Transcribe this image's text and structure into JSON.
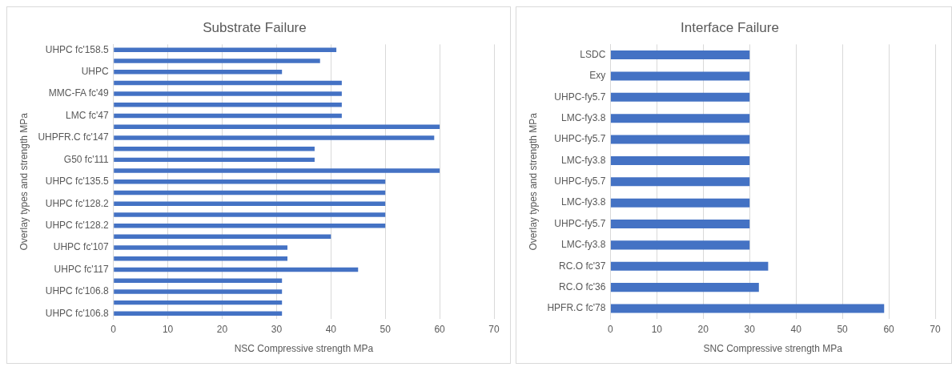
{
  "chart_data": [
    {
      "type": "bar",
      "orientation": "horizontal",
      "title": "Substrate Failure",
      "xlabel": "NSC Compressive strength MPa",
      "ylabel": "Overlay types and strength MPa",
      "categories": [
        "UHPC fc'158.5",
        null,
        "UHPC",
        null,
        "MMC-FA fc'49",
        null,
        "LMC fc'47",
        null,
        "UHPFR.C fc'147",
        null,
        "G50 fc'111",
        null,
        "UHPC fc'135.5",
        null,
        "UHPC fc'128.2",
        null,
        "UHPC fc'128.2",
        null,
        "UHPC fc'107",
        null,
        "UHPC fc'117",
        null,
        "UHPC fc'106.8",
        null,
        "UHPC fc'106.8"
      ],
      "values": [
        41,
        38,
        31,
        42,
        42,
        42,
        42,
        60,
        59,
        37,
        37,
        60,
        50,
        50,
        50,
        50,
        50,
        40,
        32,
        32,
        45,
        31,
        31,
        31,
        31
      ],
      "color": "#4472c4",
      "xlim": [
        0,
        70
      ],
      "xticks": [
        0,
        10,
        20,
        30,
        40,
        50,
        60,
        70
      ],
      "grid": "x"
    },
    {
      "type": "bar",
      "orientation": "horizontal",
      "title": "Interface Failure",
      "xlabel": "SNC Compressive strength MPa",
      "ylabel": "Overlay types and strength MPa",
      "categories": [
        "LSDC",
        "Exy",
        "UHPC-fy5.7",
        "LMC-fy3.8",
        "UHPC-fy5.7",
        "LMC-fy3.8",
        "UHPC-fy5.7",
        "LMC-fy3.8",
        "UHPC-fy5.7",
        "LMC-fy3.8",
        "RC.O fc'37",
        "RC.O fc'36",
        "HPFR.C fc'78"
      ],
      "values": [
        30,
        30,
        30,
        30,
        30,
        30,
        30,
        30,
        30,
        30,
        34,
        32,
        59
      ],
      "color": "#4472c4",
      "xlim": [
        0,
        70
      ],
      "xticks": [
        0,
        10,
        20,
        30,
        40,
        50,
        60,
        70
      ],
      "grid": "x"
    }
  ]
}
